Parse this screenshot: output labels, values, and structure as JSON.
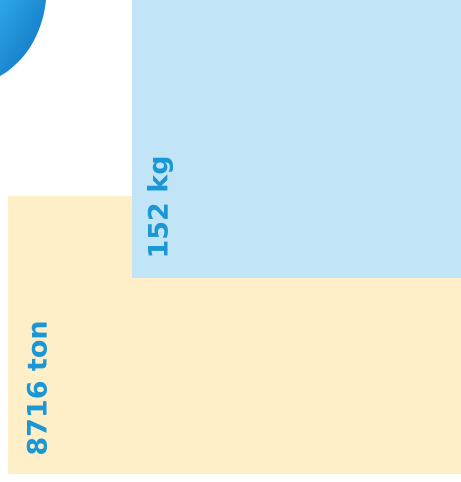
{
  "blue_label": "152 kg",
  "yellow_label": "8716 ton"
}
